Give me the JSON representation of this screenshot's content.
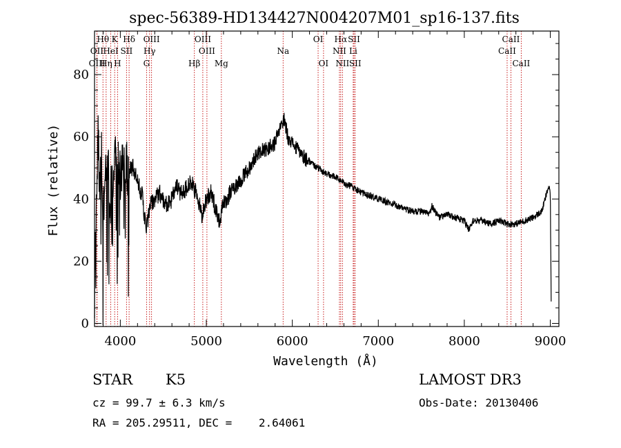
{
  "chart_data": {
    "type": "line",
    "title": "spec-56389-HD134427N004207M01_sp16-137.fits",
    "xlabel": "Wavelength (Å)",
    "ylabel": "Flux (relative)",
    "xlim": [
      3700,
      9100
    ],
    "ylim": [
      -1,
      94
    ],
    "xticks": [
      4000,
      5000,
      6000,
      7000,
      8000,
      9000
    ],
    "yticks": [
      0,
      20,
      40,
      60,
      80
    ],
    "series": [
      {
        "name": "flux",
        "x": [
          3700,
          3720,
          3740,
          3760,
          3780,
          3800,
          3820,
          3840,
          3860,
          3880,
          3900,
          3920,
          3940,
          3960,
          3980,
          4000,
          4050,
          4100,
          4150,
          4200,
          4250,
          4300,
          4350,
          4400,
          4450,
          4500,
          4550,
          4600,
          4650,
          4700,
          4750,
          4800,
          4850,
          4900,
          4950,
          5000,
          5050,
          5100,
          5150,
          5200,
          5300,
          5400,
          5500,
          5600,
          5700,
          5800,
          5850,
          5880,
          5900,
          5950,
          6000,
          6050,
          6100,
          6150,
          6200,
          6300,
          6400,
          6500,
          6560,
          6600,
          6700,
          6800,
          6900,
          7000,
          7100,
          7200,
          7300,
          7400,
          7500,
          7600,
          7620,
          7700,
          7800,
          7900,
          8000,
          8050,
          8100,
          8200,
          8300,
          8400,
          8500,
          8600,
          8700,
          8800,
          8900,
          8950,
          8980,
          9000,
          9010
        ],
        "values": [
          10,
          40,
          60,
          45,
          55,
          30,
          52,
          40,
          55,
          35,
          50,
          42,
          54,
          45,
          52,
          48,
          50,
          49,
          50,
          45,
          42,
          30,
          38,
          40,
          42,
          40,
          38,
          40,
          44,
          42,
          43,
          45,
          44,
          40,
          35,
          40,
          42,
          38,
          33,
          38,
          43,
          46,
          50,
          55,
          56,
          58,
          62,
          64,
          66,
          60,
          58,
          56,
          55,
          53,
          52,
          50,
          48,
          47,
          46,
          45,
          44,
          42,
          41,
          40,
          39,
          38,
          37,
          36,
          36,
          35,
          38,
          34,
          35,
          34,
          33,
          30,
          33,
          33,
          32,
          33,
          32,
          32,
          33,
          34,
          36,
          41,
          44,
          42,
          8
        ]
      }
    ],
    "spectral_lines": [
      {
        "label": "Hθ",
        "wavelength": 3798,
        "row": 1
      },
      {
        "label": "K",
        "wavelength": 3934,
        "row": 1
      },
      {
        "label": "Hδ",
        "wavelength": 4102,
        "row": 1
      },
      {
        "label": "OIII",
        "wavelength": 4363,
        "row": 1
      },
      {
        "label": "OIII",
        "wavelength": 4959,
        "row": 1
      },
      {
        "label": "OI",
        "wavelength": 6300,
        "row": 1
      },
      {
        "label": "Hα",
        "wavelength": 6563,
        "row": 1
      },
      {
        "label": "SII",
        "wavelength": 6717,
        "row": 1
      },
      {
        "label": "CaII",
        "wavelength": 8542,
        "row": 1
      },
      {
        "label": "OII",
        "wavelength": 3727,
        "row": 2
      },
      {
        "label": "HeI",
        "wavelength": 3889,
        "row": 2
      },
      {
        "label": "SII",
        "wavelength": 4072,
        "row": 2
      },
      {
        "label": "Hγ",
        "wavelength": 4340,
        "row": 2
      },
      {
        "label": "OIII",
        "wavelength": 5007,
        "row": 2
      },
      {
        "label": "Na",
        "wavelength": 5893,
        "row": 2
      },
      {
        "label": "NII",
        "wavelength": 6548,
        "row": 2
      },
      {
        "label": "Li",
        "wavelength": 6708,
        "row": 2
      },
      {
        "label": "CaII",
        "wavelength": 8498,
        "row": 2
      },
      {
        "label": "OIII",
        "wavelength": 3729,
        "row": 3
      },
      {
        "label": "Hη",
        "wavelength": 3835,
        "row": 3
      },
      {
        "label": "H",
        "wavelength": 3968,
        "row": 3
      },
      {
        "label": "G",
        "wavelength": 4305,
        "row": 3
      },
      {
        "label": "Hβ",
        "wavelength": 4861,
        "row": 3
      },
      {
        "label": "Mg",
        "wavelength": 5175,
        "row": 3
      },
      {
        "label": "OI",
        "wavelength": 6363,
        "row": 3
      },
      {
        "label": "NII",
        "wavelength": 6583,
        "row": 3
      },
      {
        "label": "SII",
        "wavelength": 6731,
        "row": 3
      },
      {
        "label": "CaII",
        "wavelength": 8662,
        "row": 3
      }
    ]
  },
  "info": {
    "class": "STAR",
    "subclass": "K5",
    "survey": "LAMOST DR3",
    "cz": "cz = 99.7 ± 6.3 km/s",
    "obs_date": "Obs-Date: 20130406",
    "coords": "RA = 205.29511, DEC =    2.64061"
  }
}
